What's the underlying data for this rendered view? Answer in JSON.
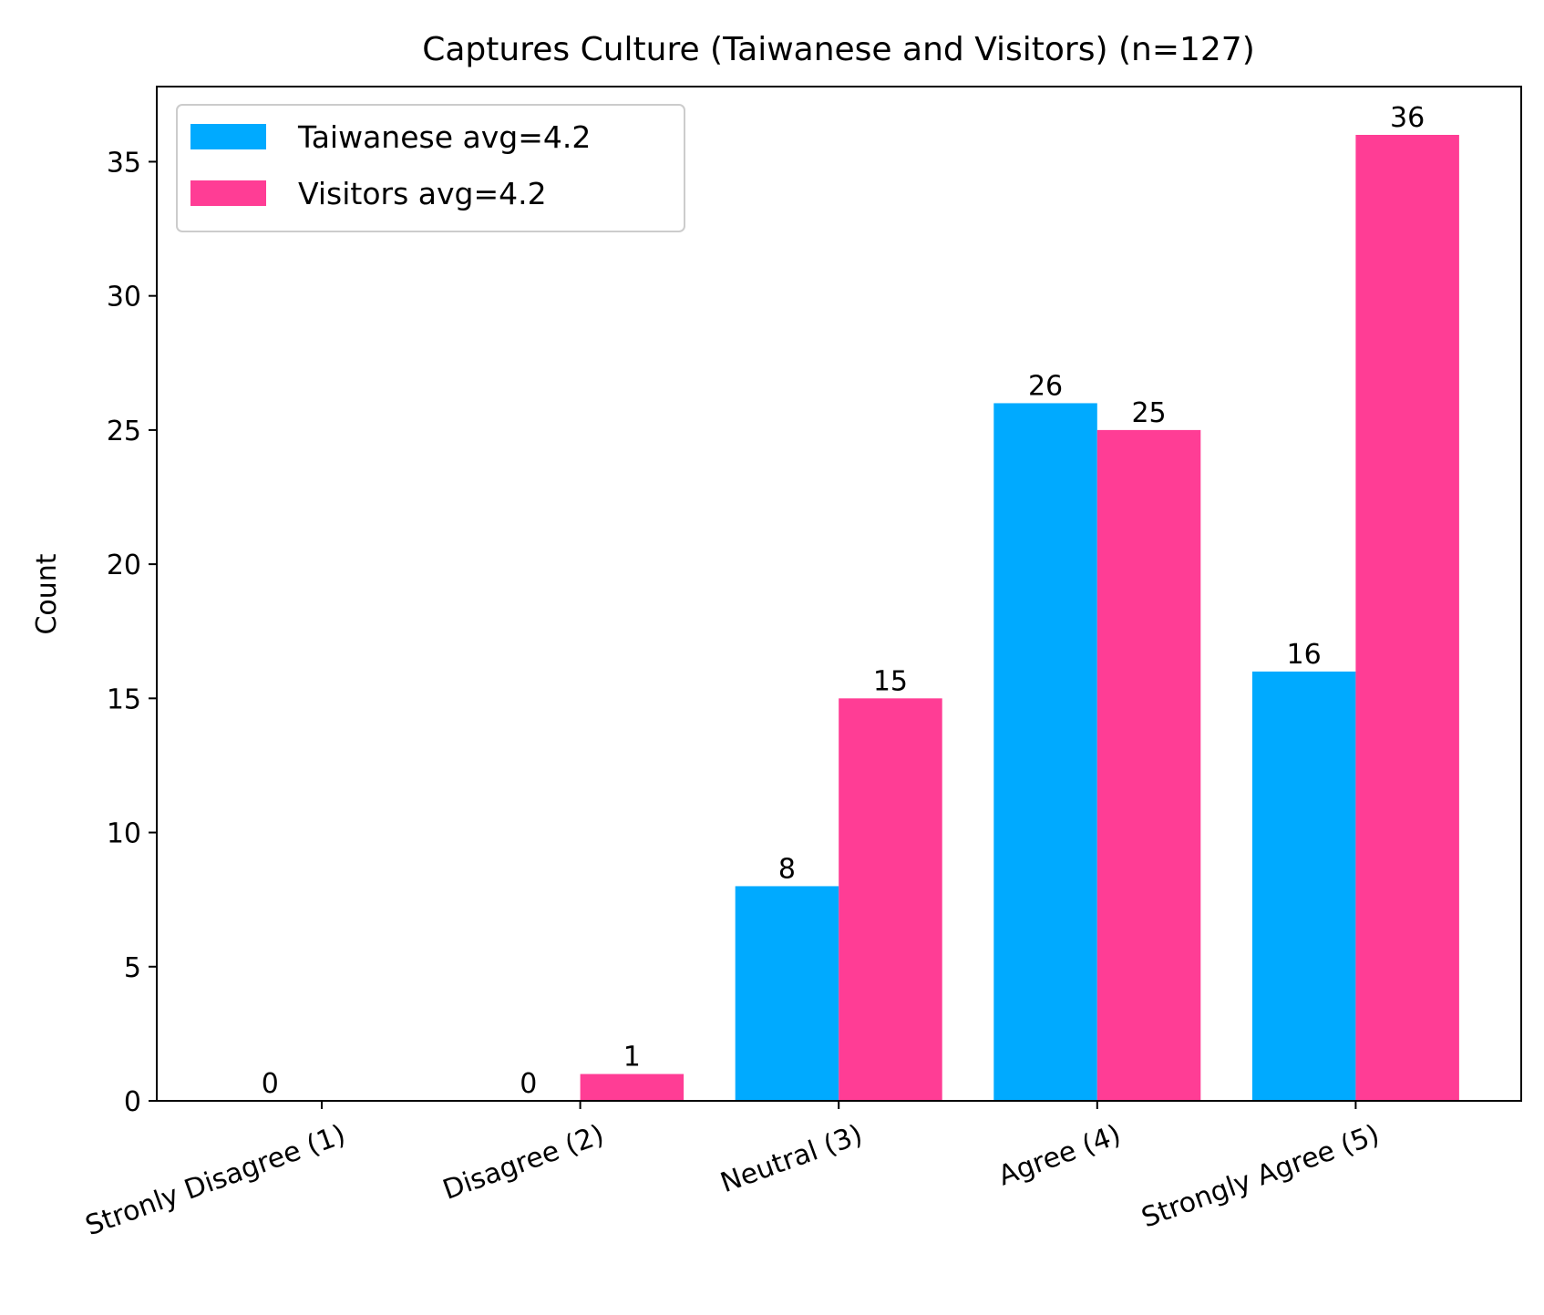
{
  "chart_data": {
    "type": "bar",
    "title": "Captures Culture (Taiwanese and Visitors) (n=127)",
    "xlabel": "",
    "ylabel": "Count",
    "categories": [
      "Stronly Disagree (1)",
      "Disagree (2)",
      "Neutral (3)",
      "Agree (4)",
      "Strongly Agree (5)"
    ],
    "series": [
      {
        "name": "Taiwanese avg=4.2",
        "values": [
          0,
          0,
          8,
          26,
          16
        ],
        "color": "#00aaff"
      },
      {
        "name": "Visitors avg=4.2",
        "values": [
          0,
          1,
          15,
          25,
          36
        ],
        "color": "#ff3d95"
      }
    ],
    "ylim": [
      0,
      37.8
    ],
    "yticks": [
      0,
      5,
      10,
      15,
      20,
      25,
      30,
      35
    ],
    "grid": false,
    "legend_position": "top-left",
    "data_labels": true,
    "data_label_omitted": [
      [
        1,
        0
      ]
    ]
  }
}
